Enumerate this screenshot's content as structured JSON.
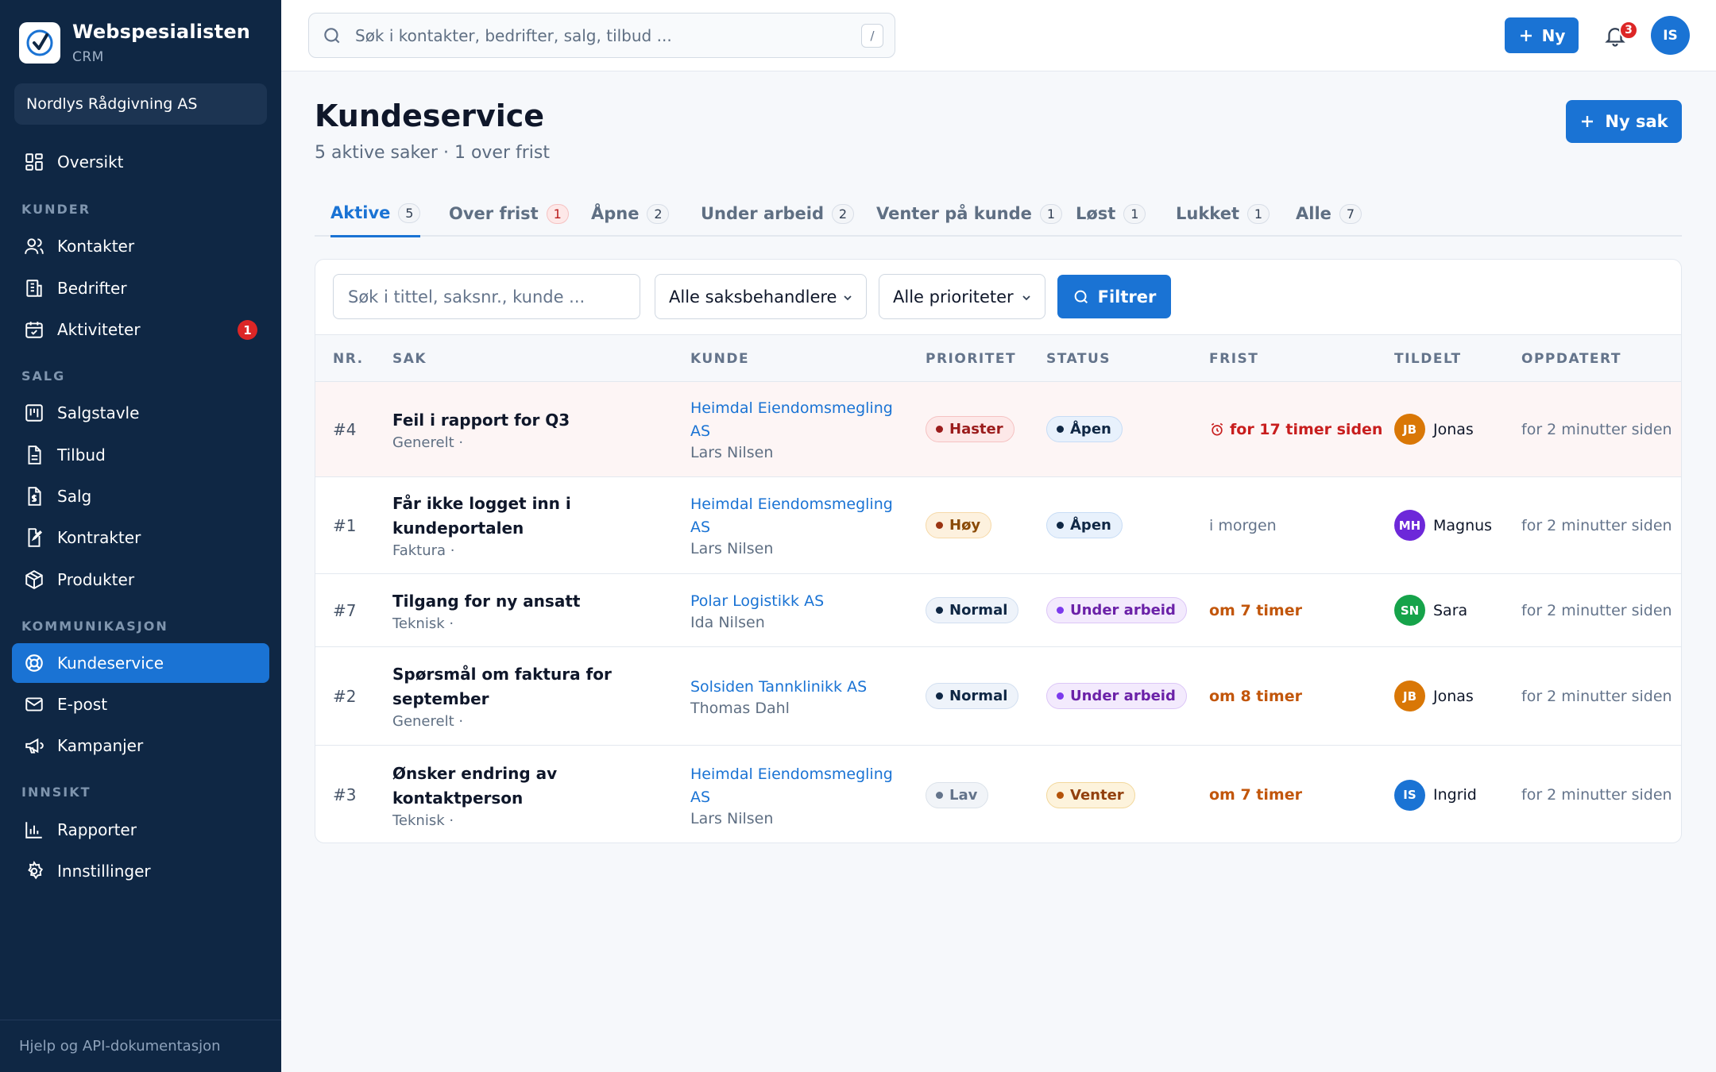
{
  "brand": {
    "name": "Webspesialisten",
    "sub": "CRM"
  },
  "org": "Nordlys Rådgivning AS",
  "nav": {
    "overview": "Oversikt",
    "sections": {
      "kunder": "KUNDER",
      "salg": "SALG",
      "kommunikasjon": "KOMMUNIKASJON",
      "innsikt": "INNSIKT"
    },
    "kontakter": "Kontakter",
    "bedrifter": "Bedrifter",
    "aktiviteter": "Aktiviteter",
    "aktiviteter_badge": "1",
    "salgstavle": "Salgstavle",
    "tilbud": "Tilbud",
    "salg": "Salg",
    "kontrakter": "Kontrakter",
    "produkter": "Produkter",
    "kundeservice": "Kundeservice",
    "epost": "E-post",
    "kampanjer": "Kampanjer",
    "rapporter": "Rapporter",
    "innstillinger": "Innstillinger",
    "footer": "Hjelp og API-dokumentasjon"
  },
  "topbar": {
    "search_placeholder": "Søk i kontakter, bedrifter, salg, tilbud ...",
    "shortcut": "/",
    "new_label": "Ny",
    "notif_count": "3",
    "user_initials": "IS"
  },
  "page": {
    "title": "Kundeservice",
    "subtitle": "5 aktive saker · 1 over frist",
    "new_case_label": "Ny sak"
  },
  "tabs": [
    {
      "label": "Aktive",
      "count": "5"
    },
    {
      "label": "Over frist",
      "count": "1"
    },
    {
      "label": "Åpne",
      "count": "2"
    },
    {
      "label": "Under arbeid",
      "count": "2"
    },
    {
      "label": "Venter på kunde",
      "count": "1"
    },
    {
      "label": "Løst",
      "count": "1"
    },
    {
      "label": "Lukket",
      "count": "1"
    },
    {
      "label": "Alle",
      "count": "7"
    }
  ],
  "filters": {
    "search_placeholder": "Søk i tittel, saksnr., kunde ...",
    "handler": "Alle saksbehandlere",
    "priority": "Alle prioriteter",
    "button": "Filtrer"
  },
  "columns": [
    "NR.",
    "SAK",
    "KUNDE",
    "PRIORITET",
    "STATUS",
    "FRIST",
    "TILDELT",
    "OPPDATERT"
  ],
  "colors": {
    "accent": "#1a73d4",
    "sidebar": "#0f2744",
    "danger": "#dc2626"
  },
  "rows": [
    {
      "nr": "#4",
      "title": "Feil i rapport for Q3",
      "category": "Generelt ·",
      "customer": "Heimdal Eiendomsmegling AS",
      "contact": "Lars Nilsen",
      "priority": "Haster",
      "status": "Åpen",
      "deadline": "for 17 timer siden",
      "assignee_initials": "JB",
      "assignee": "Jonas",
      "updated": "for 2 minutter siden"
    },
    {
      "nr": "#1",
      "title": "Får ikke logget inn i kundeportalen",
      "category": "Faktura ·",
      "customer": "Heimdal Eiendomsmegling AS",
      "contact": "Lars Nilsen",
      "priority": "Høy",
      "status": "Åpen",
      "deadline": "i morgen",
      "assignee_initials": "MH",
      "assignee": "Magnus",
      "updated": "for 2 minutter siden"
    },
    {
      "nr": "#7",
      "title": "Tilgang for ny ansatt",
      "category": "Teknisk ·",
      "customer": "Polar Logistikk AS",
      "contact": "Ida Nilsen",
      "priority": "Normal",
      "status": "Under arbeid",
      "deadline": "om 7 timer",
      "assignee_initials": "SN",
      "assignee": "Sara",
      "updated": "for 2 minutter siden"
    },
    {
      "nr": "#2",
      "title": "Spørsmål om faktura for september",
      "category": "Generelt ·",
      "customer": "Solsiden Tannklinikk AS",
      "contact": "Thomas Dahl",
      "priority": "Normal",
      "status": "Under arbeid",
      "deadline": "om 8 timer",
      "assignee_initials": "JB",
      "assignee": "Jonas",
      "updated": "for 2 minutter siden"
    },
    {
      "nr": "#3",
      "title": "Ønsker endring av kontaktperson",
      "category": "Teknisk ·",
      "customer": "Heimdal Eiendomsmegling AS",
      "contact": "Lars Nilsen",
      "priority": "Lav",
      "status": "Venter",
      "deadline": "om 7 timer",
      "assignee_initials": "IS",
      "assignee": "Ingrid",
      "updated": "for 2 minutter siden"
    }
  ]
}
